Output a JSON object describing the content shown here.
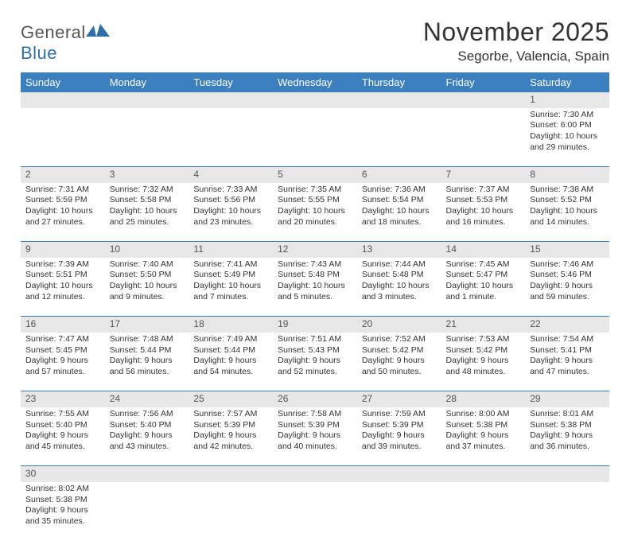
{
  "brand": {
    "part1": "General",
    "part2": "Blue"
  },
  "title": "November 2025",
  "location": "Segorbe, Valencia, Spain",
  "colors": {
    "header_bg": "#3b7fbf",
    "daynum_bg": "#e7e7e8",
    "rule": "#3b7fbf"
  },
  "weekdays": [
    "Sunday",
    "Monday",
    "Tuesday",
    "Wednesday",
    "Thursday",
    "Friday",
    "Saturday"
  ],
  "weeks": [
    [
      null,
      null,
      null,
      null,
      null,
      null,
      {
        "n": "1",
        "sr": "7:30 AM",
        "ss": "6:00 PM",
        "dl": "10 hours and 29 minutes."
      }
    ],
    [
      {
        "n": "2",
        "sr": "7:31 AM",
        "ss": "5:59 PM",
        "dl": "10 hours and 27 minutes."
      },
      {
        "n": "3",
        "sr": "7:32 AM",
        "ss": "5:58 PM",
        "dl": "10 hours and 25 minutes."
      },
      {
        "n": "4",
        "sr": "7:33 AM",
        "ss": "5:56 PM",
        "dl": "10 hours and 23 minutes."
      },
      {
        "n": "5",
        "sr": "7:35 AM",
        "ss": "5:55 PM",
        "dl": "10 hours and 20 minutes."
      },
      {
        "n": "6",
        "sr": "7:36 AM",
        "ss": "5:54 PM",
        "dl": "10 hours and 18 minutes."
      },
      {
        "n": "7",
        "sr": "7:37 AM",
        "ss": "5:53 PM",
        "dl": "10 hours and 16 minutes."
      },
      {
        "n": "8",
        "sr": "7:38 AM",
        "ss": "5:52 PM",
        "dl": "10 hours and 14 minutes."
      }
    ],
    [
      {
        "n": "9",
        "sr": "7:39 AM",
        "ss": "5:51 PM",
        "dl": "10 hours and 12 minutes."
      },
      {
        "n": "10",
        "sr": "7:40 AM",
        "ss": "5:50 PM",
        "dl": "10 hours and 9 minutes."
      },
      {
        "n": "11",
        "sr": "7:41 AM",
        "ss": "5:49 PM",
        "dl": "10 hours and 7 minutes."
      },
      {
        "n": "12",
        "sr": "7:43 AM",
        "ss": "5:48 PM",
        "dl": "10 hours and 5 minutes."
      },
      {
        "n": "13",
        "sr": "7:44 AM",
        "ss": "5:48 PM",
        "dl": "10 hours and 3 minutes."
      },
      {
        "n": "14",
        "sr": "7:45 AM",
        "ss": "5:47 PM",
        "dl": "10 hours and 1 minute."
      },
      {
        "n": "15",
        "sr": "7:46 AM",
        "ss": "5:46 PM",
        "dl": "9 hours and 59 minutes."
      }
    ],
    [
      {
        "n": "16",
        "sr": "7:47 AM",
        "ss": "5:45 PM",
        "dl": "9 hours and 57 minutes."
      },
      {
        "n": "17",
        "sr": "7:48 AM",
        "ss": "5:44 PM",
        "dl": "9 hours and 56 minutes."
      },
      {
        "n": "18",
        "sr": "7:49 AM",
        "ss": "5:44 PM",
        "dl": "9 hours and 54 minutes."
      },
      {
        "n": "19",
        "sr": "7:51 AM",
        "ss": "5:43 PM",
        "dl": "9 hours and 52 minutes."
      },
      {
        "n": "20",
        "sr": "7:52 AM",
        "ss": "5:42 PM",
        "dl": "9 hours and 50 minutes."
      },
      {
        "n": "21",
        "sr": "7:53 AM",
        "ss": "5:42 PM",
        "dl": "9 hours and 48 minutes."
      },
      {
        "n": "22",
        "sr": "7:54 AM",
        "ss": "5:41 PM",
        "dl": "9 hours and 47 minutes."
      }
    ],
    [
      {
        "n": "23",
        "sr": "7:55 AM",
        "ss": "5:40 PM",
        "dl": "9 hours and 45 minutes."
      },
      {
        "n": "24",
        "sr": "7:56 AM",
        "ss": "5:40 PM",
        "dl": "9 hours and 43 minutes."
      },
      {
        "n": "25",
        "sr": "7:57 AM",
        "ss": "5:39 PM",
        "dl": "9 hours and 42 minutes."
      },
      {
        "n": "26",
        "sr": "7:58 AM",
        "ss": "5:39 PM",
        "dl": "9 hours and 40 minutes."
      },
      {
        "n": "27",
        "sr": "7:59 AM",
        "ss": "5:39 PM",
        "dl": "9 hours and 39 minutes."
      },
      {
        "n": "28",
        "sr": "8:00 AM",
        "ss": "5:38 PM",
        "dl": "9 hours and 37 minutes."
      },
      {
        "n": "29",
        "sr": "8:01 AM",
        "ss": "5:38 PM",
        "dl": "9 hours and 36 minutes."
      }
    ],
    [
      {
        "n": "30",
        "sr": "8:02 AM",
        "ss": "5:38 PM",
        "dl": "9 hours and 35 minutes."
      },
      null,
      null,
      null,
      null,
      null,
      null
    ]
  ],
  "labels": {
    "sunrise": "Sunrise:",
    "sunset": "Sunset:",
    "daylight": "Daylight:"
  }
}
